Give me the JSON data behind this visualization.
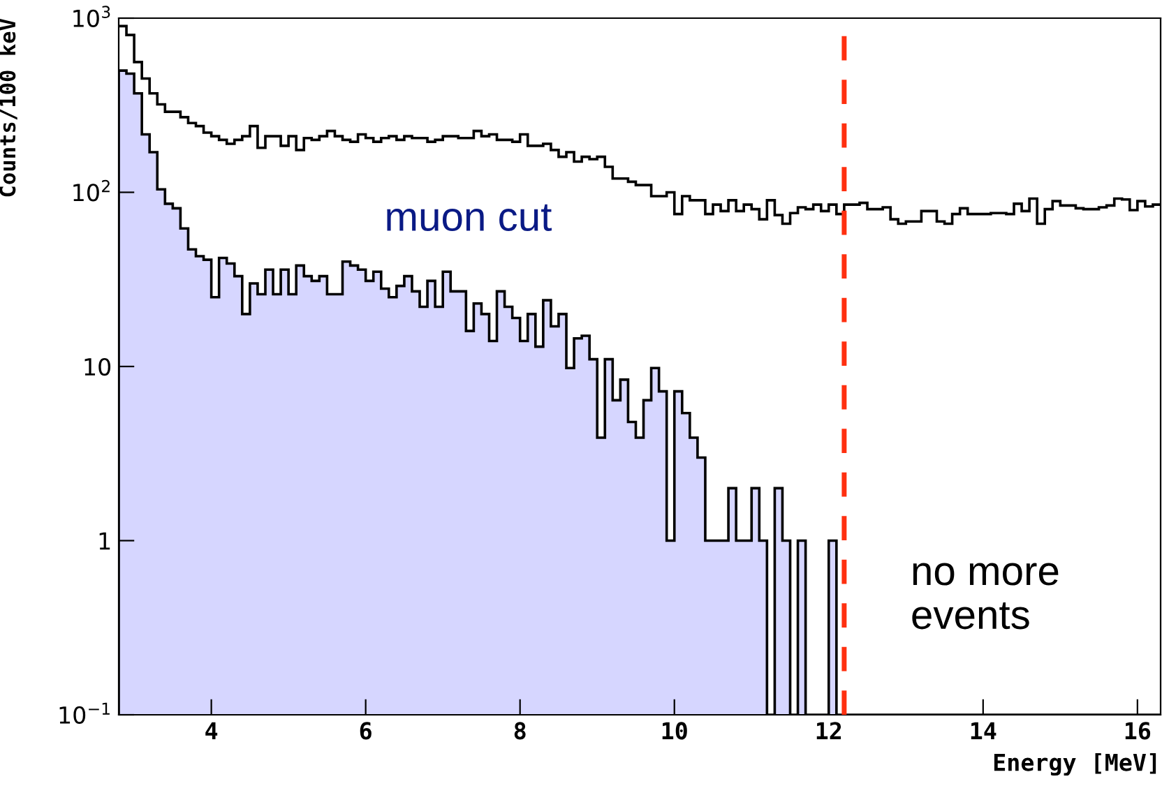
{
  "chart_data": {
    "type": "histogram",
    "xlabel": "Energy [MeV]",
    "ylabel": "Counts/100 keV",
    "log": "y",
    "grid": false,
    "xlim": [
      2.8,
      16.3
    ],
    "ylim": [
      0.1,
      1000
    ],
    "xticks": [
      4,
      6,
      8,
      10,
      12,
      14,
      16
    ],
    "yticks": [
      {
        "value": 0.1,
        "label": "10$^{−1}$"
      },
      1,
      10,
      {
        "value": 100,
        "label": "10$^{2}$"
      },
      {
        "value": 1000,
        "label": "10$^{3}$"
      }
    ],
    "bins": [
      2.8,
      2.9,
      3.0,
      3.1,
      3.2,
      3.3,
      3.4,
      3.5,
      3.6,
      3.7,
      3.8,
      3.9,
      4.0,
      4.1,
      4.2,
      4.3,
      4.4,
      4.5,
      4.6,
      4.7,
      4.8,
      4.9,
      5.0,
      5.1,
      5.2,
      5.3,
      5.4,
      5.5,
      5.6,
      5.7,
      5.8,
      5.9,
      6.0,
      6.1,
      6.2,
      6.3,
      6.4,
      6.5,
      6.6,
      6.7,
      6.8,
      6.9,
      7.0,
      7.1,
      7.2,
      7.3,
      7.4,
      7.5,
      7.6,
      7.7,
      7.8,
      7.9,
      8.0,
      8.1,
      8.2,
      8.3,
      8.4,
      8.5,
      8.6,
      8.7,
      8.8,
      8.9,
      9.0,
      9.1,
      9.2,
      9.3,
      9.4,
      9.5,
      9.6,
      9.7,
      9.8,
      9.9,
      10.0,
      10.1,
      10.2,
      10.3,
      10.4,
      10.5,
      10.6,
      10.7,
      10.8,
      10.9,
      11.0,
      11.1,
      11.2,
      11.3,
      11.4,
      11.5,
      11.6,
      11.7,
      11.8,
      11.9,
      12.0,
      12.1,
      12.2,
      12.3,
      12.4,
      12.5,
      12.6,
      12.7,
      12.8,
      12.9,
      13.0,
      13.1,
      13.2,
      13.3,
      13.4,
      13.5,
      13.6,
      13.7,
      13.8,
      13.9,
      14.0,
      14.1,
      14.2,
      14.3,
      14.4,
      14.5,
      14.6,
      14.7,
      14.8,
      14.9,
      15.0,
      15.1,
      15.2,
      15.3,
      15.4,
      15.5,
      15.6,
      15.7,
      15.8,
      15.9,
      16.0,
      16.1,
      16.2,
      16.3
    ],
    "series": [
      {
        "color": "#d6d6ff",
        "values": [
          500,
          480,
          370,
          215,
          170,
          104,
          86,
          81,
          62,
          47,
          43,
          41,
          25,
          42,
          39,
          33,
          20,
          30,
          26,
          36,
          26,
          36,
          26,
          38,
          33,
          31,
          33,
          26,
          26,
          40,
          38,
          36,
          31,
          35,
          28,
          25,
          29,
          33,
          27,
          22,
          31,
          22,
          35,
          27,
          27,
          16,
          23,
          20,
          14,
          27,
          22,
          19,
          14,
          20,
          13,
          24,
          17,
          20,
          9.8,
          14.5,
          15,
          11,
          3.9,
          11,
          6.4,
          8.4,
          4.8,
          3.9,
          6.4,
          9.8,
          7.2,
          1,
          7.2,
          5.4,
          3.9,
          3,
          1,
          1,
          1,
          2,
          1,
          1,
          2,
          1,
          null,
          2,
          1,
          null,
          1,
          null,
          null,
          null,
          1,
          null,
          null,
          null,
          null,
          null,
          null,
          null,
          null,
          null,
          null,
          null,
          null,
          null,
          null,
          null,
          null,
          null,
          null,
          null,
          null,
          null,
          null,
          null,
          null,
          null,
          null,
          null,
          null,
          null,
          null,
          null,
          null,
          null,
          null,
          null,
          null,
          null,
          null,
          null,
          null,
          null,
          null
        ]
      },
      {
        "color": "#000000",
        "values": [
          900,
          800,
          560,
          450,
          370,
          320,
          290,
          290,
          270,
          250,
          240,
          220,
          210,
          200,
          190,
          200,
          210,
          240,
          180,
          210,
          210,
          185,
          210,
          175,
          205,
          200,
          210,
          225,
          210,
          200,
          195,
          215,
          205,
          195,
          205,
          210,
          200,
          210,
          205,
          205,
          195,
          200,
          210,
          210,
          205,
          205,
          225,
          210,
          215,
          200,
          200,
          195,
          215,
          185,
          185,
          190,
          175,
          160,
          170,
          150,
          160,
          155,
          160,
          140,
          120,
          120,
          115,
          110,
          110,
          95,
          95,
          100,
          75,
          95,
          90,
          90,
          75,
          85,
          78,
          90,
          78,
          85,
          80,
          70,
          90,
          74,
          66,
          76,
          82,
          80,
          85,
          78,
          85,
          75,
          85,
          85,
          87,
          80,
          80,
          82,
          70,
          66,
          68,
          68,
          78,
          78,
          68,
          66,
          75,
          81,
          75,
          75,
          75,
          76,
          76,
          75,
          86,
          78,
          92,
          66,
          80,
          89,
          84,
          84,
          81,
          80,
          80,
          82,
          84,
          92,
          91,
          79,
          89,
          83,
          85
        ]
      }
    ],
    "ref_lines": [
      {
        "axis": "x",
        "value": 12.2,
        "color": "#ff3010",
        "line_style": "dashed"
      }
    ],
    "annotations": [
      "muon cut",
      "no more\nevents"
    ]
  }
}
